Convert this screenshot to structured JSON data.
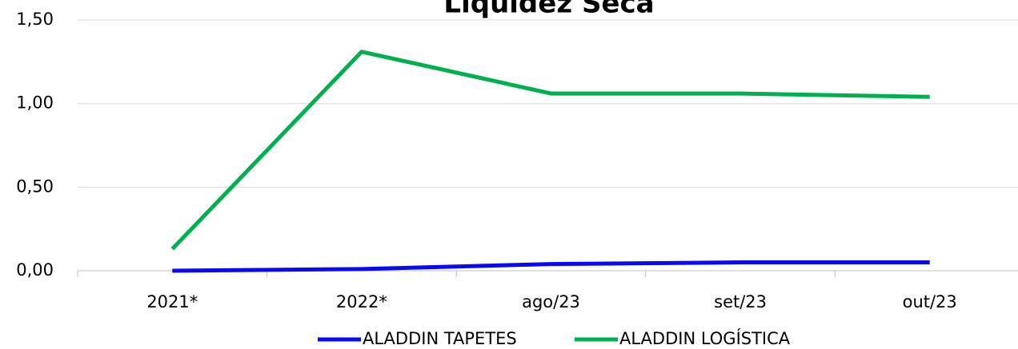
{
  "chart_data": {
    "type": "line",
    "title": "Liquidez Seca",
    "categories": [
      "2021*",
      "2022*",
      "ago/23",
      "set/23",
      "out/23"
    ],
    "series": [
      {
        "name": "ALADDIN TAPETES",
        "color": "#0a0af0",
        "values": [
          0.0,
          0.01,
          0.04,
          0.05,
          0.05
        ]
      },
      {
        "name": "ALADDIN LOGÍSTICA",
        "color": "#00b050",
        "values": [
          0.13,
          1.31,
          1.06,
          1.06,
          1.04
        ]
      }
    ],
    "ylim": [
      0,
      1.5
    ],
    "yticks": [
      {
        "value": 0,
        "label": "0,00"
      },
      {
        "value": 0.5,
        "label": "0,50"
      },
      {
        "value": 1,
        "label": "1,00"
      },
      {
        "value": 1.5,
        "label": "1,50"
      }
    ],
    "grid": true,
    "legend": "bottom"
  }
}
